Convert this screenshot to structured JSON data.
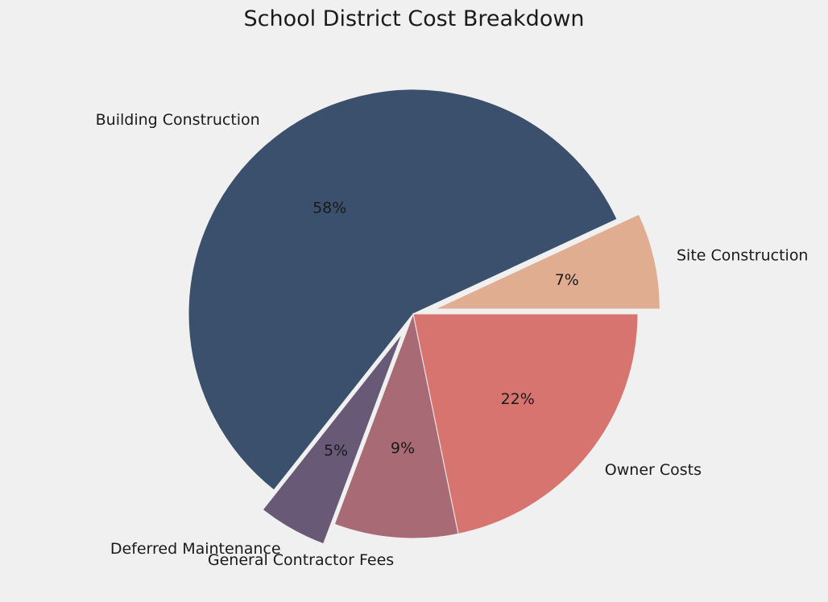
{
  "chart_data": {
    "type": "pie",
    "title": "School District Cost Breakdown",
    "slices": [
      {
        "label": "Site Construction",
        "value": 7,
        "pct_label": "7%",
        "color": "#e1ad91",
        "exploded": true
      },
      {
        "label": "Building Construction",
        "value": 58,
        "pct_label": "58%",
        "color": "#3b506c",
        "exploded": false
      },
      {
        "label": "Deferred Maintenance",
        "value": 5,
        "pct_label": "5%",
        "color": "#685a77",
        "exploded": true
      },
      {
        "label": "General Contractor Fees",
        "value": 9,
        "pct_label": "9%",
        "color": "#a86a75",
        "exploded": false
      },
      {
        "label": "Owner Costs",
        "value": 22,
        "pct_label": "22%",
        "color": "#d77470",
        "exploded": false
      }
    ],
    "start_angle_deg": 0,
    "direction": "counterclockwise",
    "legend": "none"
  }
}
